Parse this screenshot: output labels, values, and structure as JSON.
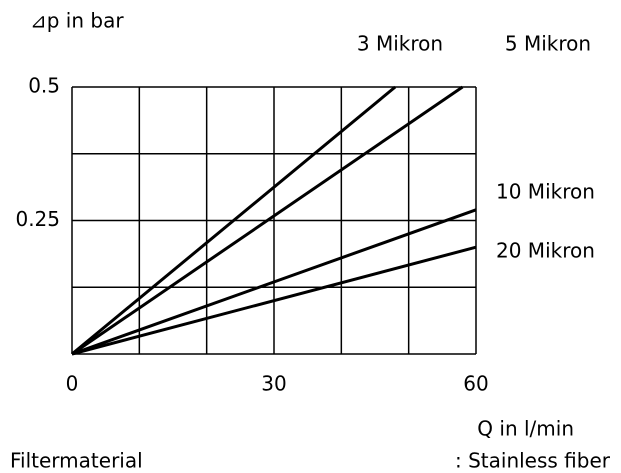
{
  "chart_data": {
    "type": "line",
    "y_label": "⊿p in bar",
    "x_label": "Q in l/min",
    "xlim": [
      0,
      60
    ],
    "ylim": [
      0,
      0.5
    ],
    "xticks": [
      0,
      {
        "value": 10,
        "label": null
      },
      {
        "value": 20,
        "label": null
      },
      30,
      {
        "value": 40,
        "label": null
      },
      {
        "value": 50,
        "label": null
      },
      60
    ],
    "yticks": [
      {
        "value": 0,
        "label": null
      },
      {
        "value": 0.125,
        "label": null
      },
      0.25,
      {
        "value": 0.375,
        "label": null
      },
      0.5
    ],
    "grid": true,
    "series": [
      {
        "name": "3 Mikron",
        "color": "#000000",
        "x": [
          0,
          48
        ],
        "values": [
          0,
          0.5
        ]
      },
      {
        "name": "5 Mikron",
        "color": "#000000",
        "x": [
          0,
          58
        ],
        "values": [
          0,
          0.5
        ]
      },
      {
        "name": "10 Mikron",
        "color": "#000000",
        "x": [
          0,
          60
        ],
        "values": [
          0,
          0.27
        ]
      },
      {
        "name": "20 Mikron",
        "color": "#000000",
        "x": [
          0,
          60
        ],
        "values": [
          0,
          0.2
        ]
      }
    ],
    "footnote": {
      "label": "Filtermaterial",
      "value": ": Stainless fiber"
    }
  }
}
